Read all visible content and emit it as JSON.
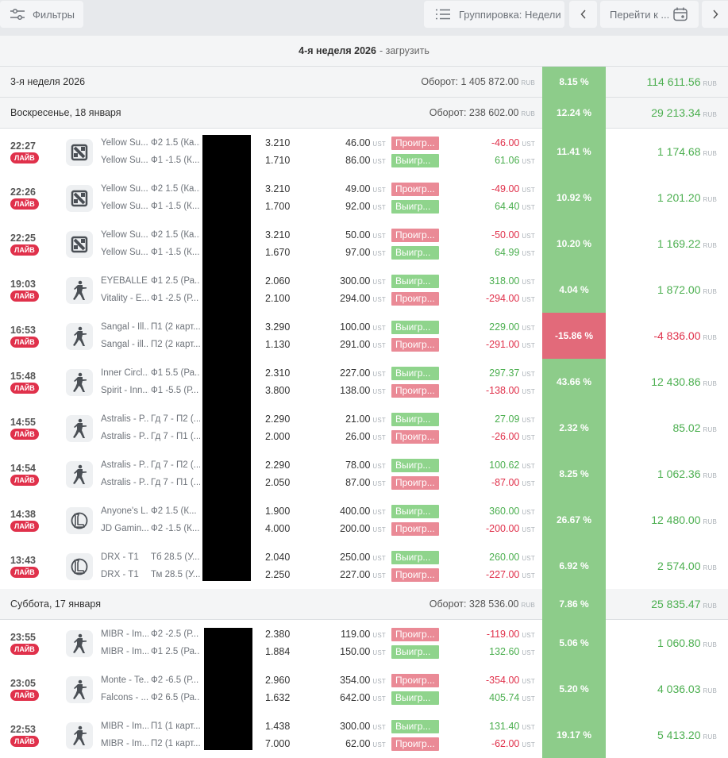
{
  "toolbar": {
    "filters_label": "Фильтры",
    "grouping_label": "Группировка: Недели",
    "goto_label": "Перейти к ...",
    "prev_icon": "chevron-left-icon",
    "next_icon": "chevron-right-icon"
  },
  "week_header": {
    "title": "4-я неделя 2026",
    "action": "- загрузить"
  },
  "currency_rub": "RUB",
  "currency_ust": "UST",
  "live_label": "ЛАЙВ",
  "colors": {
    "green": "#8dcc8a",
    "red": "#e26a7a",
    "live": "#e0314b",
    "profit": "#4caf50"
  },
  "summaries": [
    {
      "label": "3-я неделя 2026",
      "turnover": "Оборот: 1 405 872.00",
      "pct": "8.15 %",
      "profit": "114 611.56",
      "pct_color": "green"
    },
    {
      "label": "Воскресенье, 18 января",
      "turnover": "Оборот: 238 602.00",
      "pct": "12.24 %",
      "profit": "29 213.34",
      "pct_color": "green"
    },
    {
      "label": "Суббота, 17 января",
      "turnover": "Оборот: 328 536.00",
      "pct": "7.86 %",
      "profit": "25 835.47",
      "pct_color": "green"
    }
  ],
  "bets": [
    {
      "time": "22:27",
      "game": "dota2-icon",
      "pct": "11.41 %",
      "pct_color": "green",
      "profit": "1 174.68",
      "profit_sign": "pos",
      "lines": [
        {
          "team": "Yellow Su...",
          "market": "Ф2 1.5 (Ка...",
          "odds": "3.210",
          "stake": "46.00",
          "status": "Проигр...",
          "status_type": "lose",
          "result": "-46.00",
          "result_sign": "neg"
        },
        {
          "team": "Yellow Su...",
          "market": "Ф1 -1.5 (К...",
          "odds": "1.710",
          "stake": "86.00",
          "status": "Выигр...",
          "status_type": "win",
          "result": "61.06",
          "result_sign": "pos"
        }
      ]
    },
    {
      "time": "22:26",
      "game": "dota2-icon",
      "pct": "10.92 %",
      "pct_color": "green",
      "profit": "1 201.20",
      "profit_sign": "pos",
      "lines": [
        {
          "team": "Yellow Su...",
          "market": "Ф2 1.5 (Ка...",
          "odds": "3.210",
          "stake": "49.00",
          "status": "Проигр...",
          "status_type": "lose",
          "result": "-49.00",
          "result_sign": "neg"
        },
        {
          "team": "Yellow Su...",
          "market": "Ф1 -1.5 (К...",
          "odds": "1.700",
          "stake": "92.00",
          "status": "Выигр...",
          "status_type": "win",
          "result": "64.40",
          "result_sign": "pos"
        }
      ]
    },
    {
      "time": "22:25",
      "game": "dota2-icon",
      "pct": "10.20 %",
      "pct_color": "green",
      "profit": "1 169.22",
      "profit_sign": "pos",
      "lines": [
        {
          "team": "Yellow Su...",
          "market": "Ф2 1.5 (Ка...",
          "odds": "3.210",
          "stake": "50.00",
          "status": "Проигр...",
          "status_type": "lose",
          "result": "-50.00",
          "result_sign": "neg"
        },
        {
          "team": "Yellow Su...",
          "market": "Ф1 -1.5 (К...",
          "odds": "1.670",
          "stake": "97.00",
          "status": "Выигр...",
          "status_type": "win",
          "result": "64.99",
          "result_sign": "pos"
        }
      ]
    },
    {
      "time": "19:03",
      "game": "counter-strike-icon",
      "pct": "4.04 %",
      "pct_color": "green",
      "profit": "1 872.00",
      "profit_sign": "pos",
      "lines": [
        {
          "team": "EYEBALLE...",
          "market": "Ф1 2.5 (Ра...",
          "odds": "2.060",
          "stake": "300.00",
          "status": "Выигр...",
          "status_type": "win",
          "result": "318.00",
          "result_sign": "pos"
        },
        {
          "team": "Vitality - E...",
          "market": "Ф1 -2.5 (Р...",
          "odds": "2.100",
          "stake": "294.00",
          "status": "Проигр...",
          "status_type": "lose",
          "result": "-294.00",
          "result_sign": "neg"
        }
      ]
    },
    {
      "time": "16:53",
      "game": "counter-strike-icon",
      "pct": "-15.86 %",
      "pct_color": "red",
      "profit": "-4 836.00",
      "profit_sign": "neg",
      "lines": [
        {
          "team": "Sangal - Ill...",
          "market": "П1 (2 карт...",
          "odds": "3.290",
          "stake": "100.00",
          "status": "Выигр...",
          "status_type": "win",
          "result": "229.00",
          "result_sign": "pos"
        },
        {
          "team": "Sangal - ill...",
          "market": "П2 (2 карт...",
          "odds": "1.130",
          "stake": "291.00",
          "status": "Проигр...",
          "status_type": "lose",
          "result": "-291.00",
          "result_sign": "neg"
        }
      ]
    },
    {
      "time": "15:48",
      "game": "counter-strike-icon",
      "pct": "43.66 %",
      "pct_color": "green",
      "profit": "12 430.86",
      "profit_sign": "pos",
      "lines": [
        {
          "team": "Inner Circl...",
          "market": "Ф1 5.5 (Ра...",
          "odds": "2.310",
          "stake": "227.00",
          "status": "Выигр...",
          "status_type": "win",
          "result": "297.37",
          "result_sign": "pos"
        },
        {
          "team": "Spirit - Inn...",
          "market": "Ф1 -5.5 (Р...",
          "odds": "3.800",
          "stake": "138.00",
          "status": "Проигр...",
          "status_type": "lose",
          "result": "-138.00",
          "result_sign": "neg"
        }
      ]
    },
    {
      "time": "14:55",
      "game": "counter-strike-icon",
      "pct": "2.32 %",
      "pct_color": "green",
      "profit": "85.02",
      "profit_sign": "pos",
      "lines": [
        {
          "team": "Astralis - P...",
          "market": "Гд 7 - П2 (...",
          "odds": "2.290",
          "stake": "21.00",
          "status": "Выигр...",
          "status_type": "win",
          "result": "27.09",
          "result_sign": "pos"
        },
        {
          "team": "Astralis - P...",
          "market": "Гд 7 - П1 (...",
          "odds": "2.000",
          "stake": "26.00",
          "status": "Проигр...",
          "status_type": "lose",
          "result": "-26.00",
          "result_sign": "neg"
        }
      ]
    },
    {
      "time": "14:54",
      "game": "counter-strike-icon",
      "pct": "8.25 %",
      "pct_color": "green",
      "profit": "1 062.36",
      "profit_sign": "pos",
      "lines": [
        {
          "team": "Astralis - P...",
          "market": "Гд 7 - П2 (...",
          "odds": "2.290",
          "stake": "78.00",
          "status": "Выигр...",
          "status_type": "win",
          "result": "100.62",
          "result_sign": "pos"
        },
        {
          "team": "Astralis - P...",
          "market": "Гд 7 - П1 (...",
          "odds": "2.050",
          "stake": "87.00",
          "status": "Проигр...",
          "status_type": "lose",
          "result": "-87.00",
          "result_sign": "neg"
        }
      ]
    },
    {
      "time": "14:38",
      "game": "league-of-legends-icon",
      "pct": "26.67 %",
      "pct_color": "green",
      "profit": "12 480.00",
      "profit_sign": "pos",
      "lines": [
        {
          "team": "Anyone's L...",
          "market": "Ф2 1.5 (К...",
          "odds": "1.900",
          "stake": "400.00",
          "status": "Выигр...",
          "status_type": "win",
          "result": "360.00",
          "result_sign": "pos"
        },
        {
          "team": "JD Gamin...",
          "market": "Ф2 -1.5 (К...",
          "odds": "4.000",
          "stake": "200.00",
          "status": "Проигр...",
          "status_type": "lose",
          "result": "-200.00",
          "result_sign": "neg"
        }
      ]
    },
    {
      "time": "13:43",
      "game": "league-of-legends-icon",
      "pct": "6.92 %",
      "pct_color": "green",
      "profit": "2 574.00",
      "profit_sign": "pos",
      "lines": [
        {
          "team": "DRX - T1",
          "market": "Тб 28.5 (У...",
          "odds": "2.040",
          "stake": "250.00",
          "status": "Выигр...",
          "status_type": "win",
          "result": "260.00",
          "result_sign": "pos"
        },
        {
          "team": "DRX - T1",
          "market": "Тм 28.5 (У...",
          "odds": "2.250",
          "stake": "227.00",
          "status": "Проигр...",
          "status_type": "lose",
          "result": "-227.00",
          "result_sign": "neg"
        }
      ]
    },
    {
      "time": "23:55",
      "game": "counter-strike-icon",
      "pct": "5.06 %",
      "pct_color": "green",
      "profit": "1 060.80",
      "profit_sign": "pos",
      "lines": [
        {
          "team": "MIBR - Im...",
          "market": "Ф2 -2.5 (Р...",
          "odds": "2.380",
          "stake": "119.00",
          "status": "Проигр...",
          "status_type": "lose",
          "result": "-119.00",
          "result_sign": "neg"
        },
        {
          "team": "MIBR - Im...",
          "market": "Ф1 2.5 (Ра...",
          "odds": "1.884",
          "stake": "150.00",
          "status": "Выигр...",
          "status_type": "win",
          "result": "132.60",
          "result_sign": "pos"
        }
      ]
    },
    {
      "time": "23:05",
      "game": "counter-strike-icon",
      "pct": "5.20 %",
      "pct_color": "green",
      "profit": "4 036.03",
      "profit_sign": "pos",
      "lines": [
        {
          "team": "Monte - Te...",
          "market": "Ф2 -6.5 (Р...",
          "odds": "2.960",
          "stake": "354.00",
          "status": "Проигр...",
          "status_type": "lose",
          "result": "-354.00",
          "result_sign": "neg"
        },
        {
          "team": "Falcons - ...",
          "market": "Ф2 6.5 (Ра...",
          "odds": "1.632",
          "stake": "642.00",
          "status": "Выигр...",
          "status_type": "win",
          "result": "405.74",
          "result_sign": "pos"
        }
      ]
    },
    {
      "time": "22:53",
      "game": "counter-strike-icon",
      "pct": "19.17 %",
      "pct_color": "green",
      "profit": "5 413.20",
      "profit_sign": "pos",
      "lines": [
        {
          "team": "MIBR - Im...",
          "market": "П1 (1 карт...",
          "odds": "1.438",
          "stake": "300.00",
          "status": "Выигр...",
          "status_type": "win",
          "result": "131.40",
          "result_sign": "pos"
        },
        {
          "team": "MIBR - Im...",
          "market": "П2 (1 карт...",
          "odds": "7.000",
          "stake": "62.00",
          "status": "Проигр...",
          "status_type": "lose",
          "result": "-62.00",
          "result_sign": "neg"
        }
      ]
    }
  ]
}
